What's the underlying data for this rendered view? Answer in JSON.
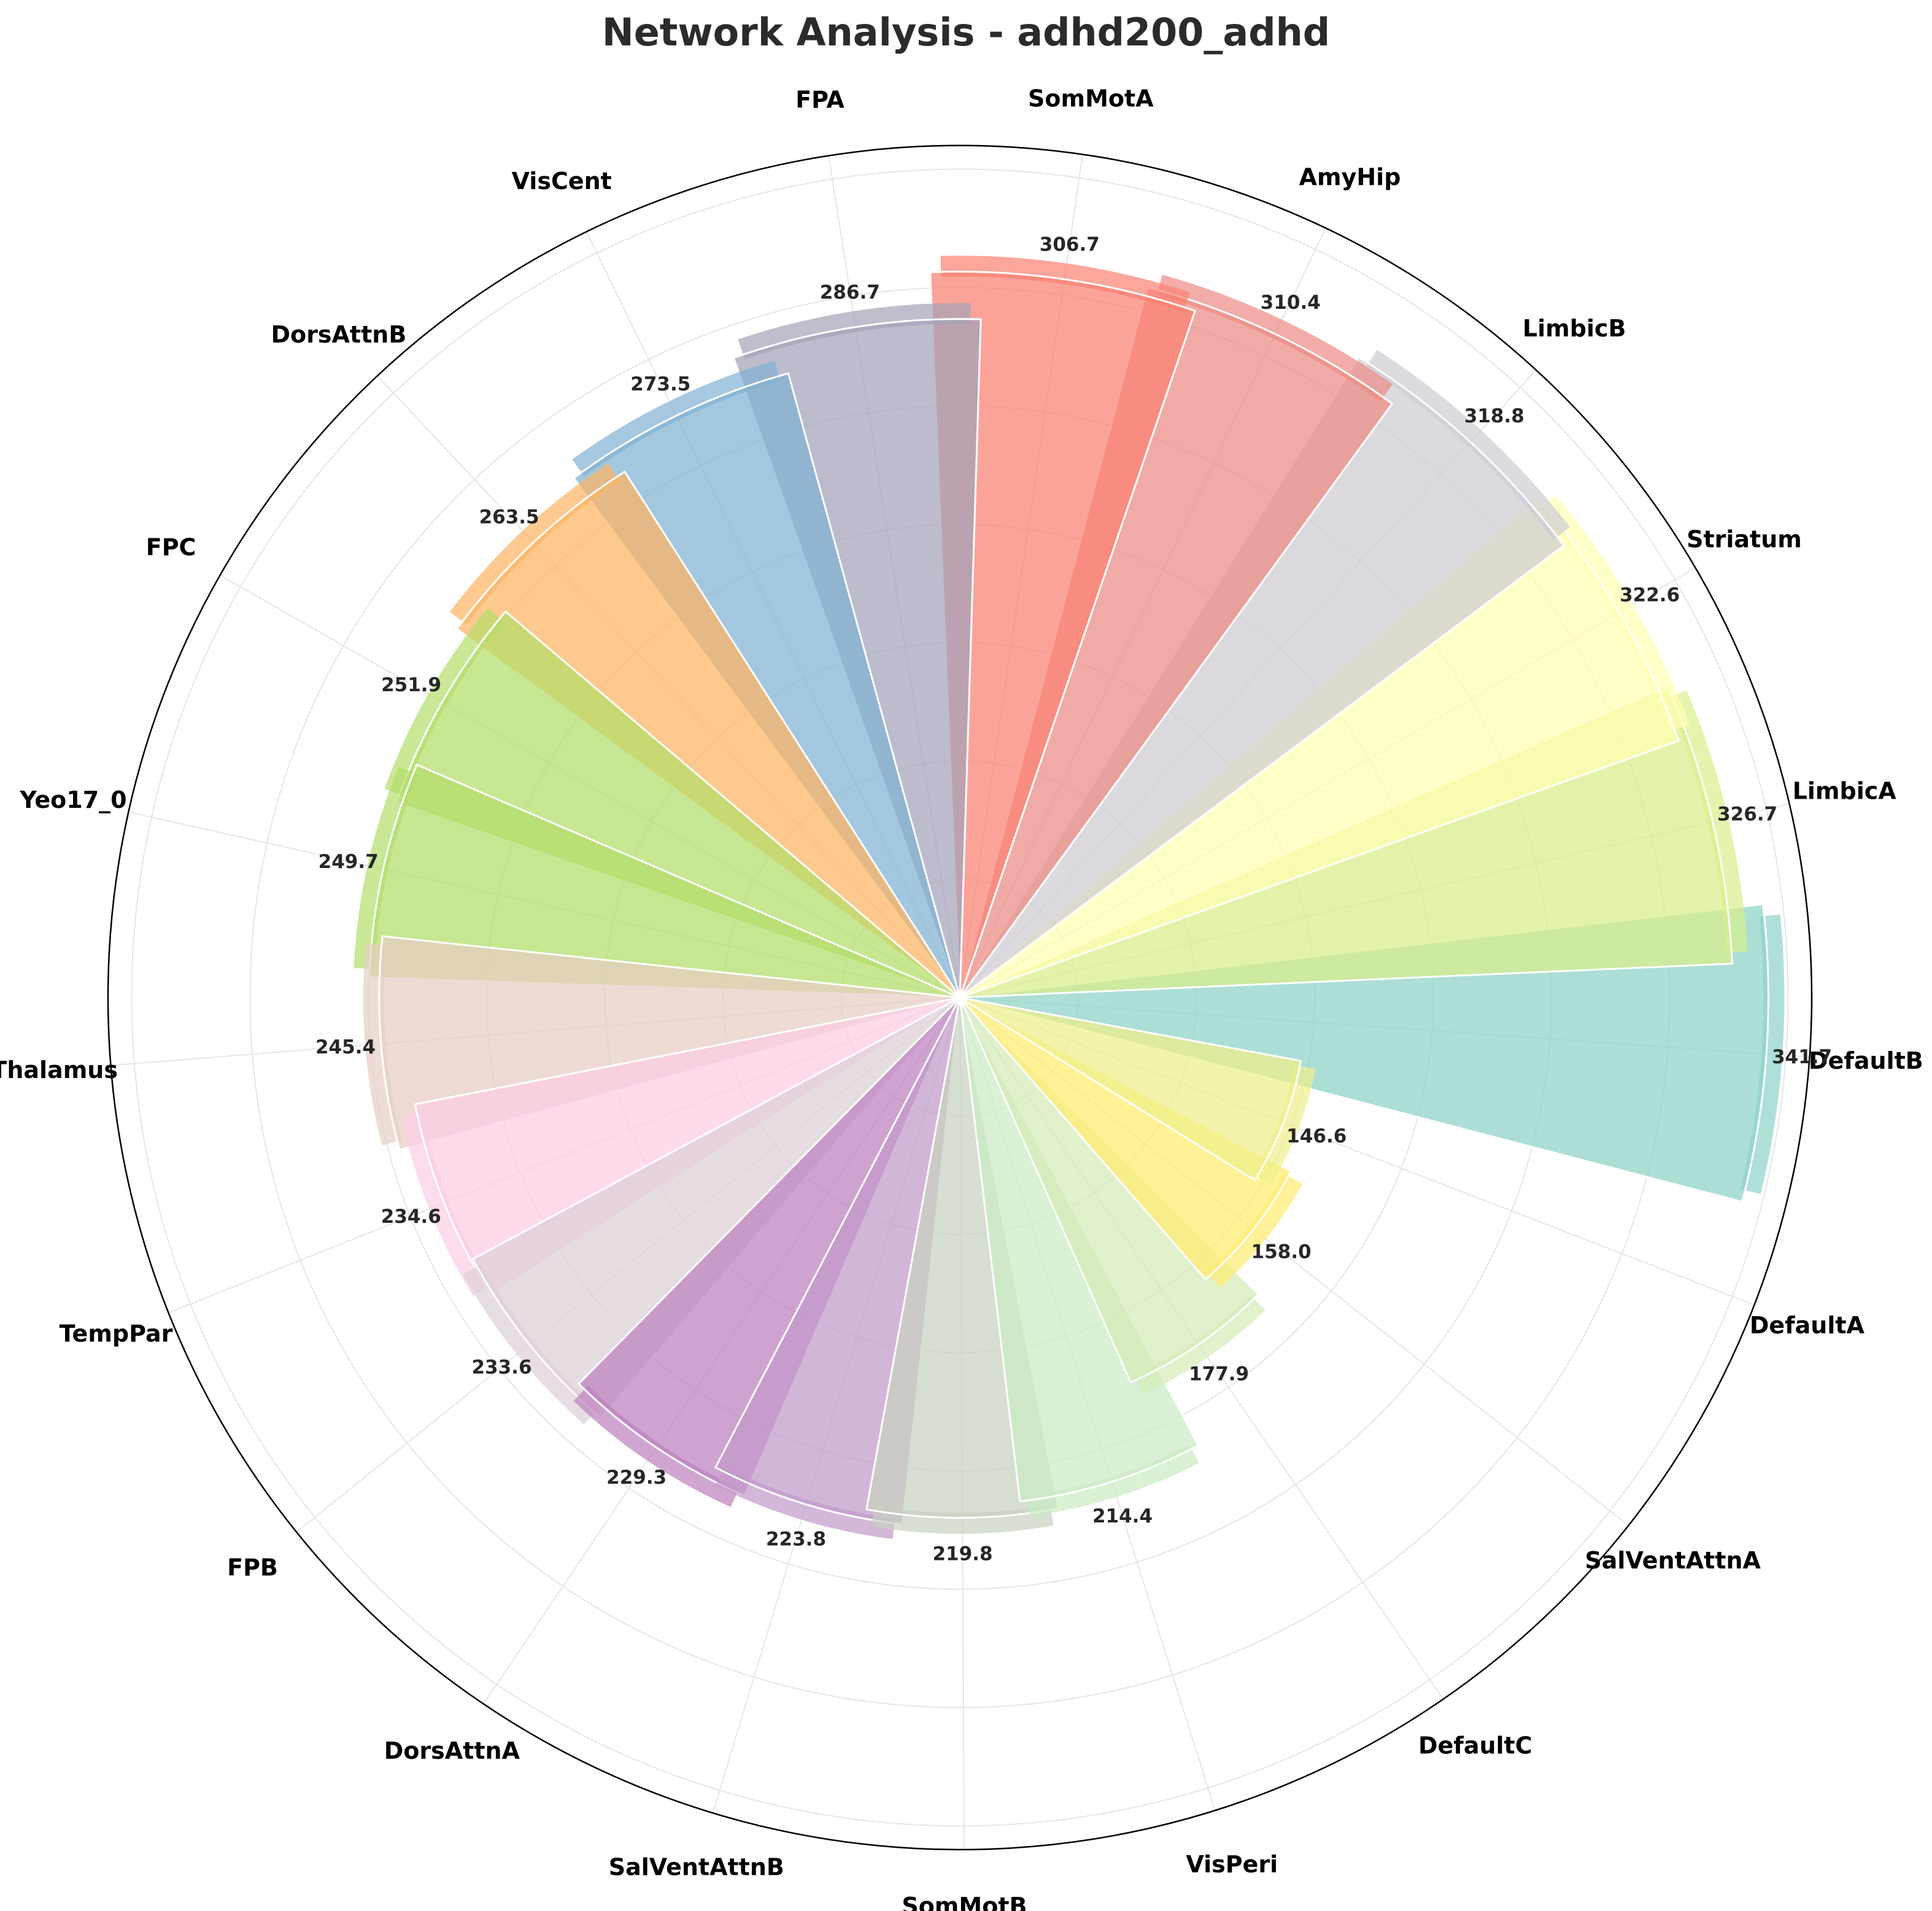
{
  "chart_data": {
    "type": "polar-bar",
    "title": "Network Analysis - adhd200_adhd",
    "xlabel": "",
    "ylabel": "",
    "rlim": [
      0,
      360
    ],
    "grid": true,
    "categories": [
      "DefaultB",
      "LimbicA",
      "Striatum",
      "LimbicB",
      "AmyHip",
      "SomMotA",
      "FPA",
      "VisCent",
      "DorsAttnB",
      "FPC",
      "Yeo17_0",
      "Thalamus",
      "TempPar",
      "FPB",
      "DorsAttnA",
      "SalVentAttnB",
      "SomMotB",
      "VisPeri",
      "DefaultC",
      "SalVentAttnA",
      "DefaultA"
    ],
    "values": [
      341.7,
      326.7,
      322.6,
      318.8,
      310.4,
      306.7,
      286.7,
      273.5,
      263.5,
      251.9,
      249.7,
      245.4,
      234.6,
      233.6,
      229.3,
      223.8,
      219.8,
      214.4,
      177.9,
      158.0,
      146.6
    ],
    "value_labels": [
      "341.7",
      "326.7",
      "322.6",
      "318.8",
      "310.4",
      "306.7",
      "286.7",
      "273.5",
      "263.5",
      "251.9",
      "249.7",
      "245.4",
      "234.6",
      "233.6",
      "229.3",
      "223.8",
      "219.8",
      "214.4",
      "177.9",
      "158.0",
      "146.6"
    ],
    "colors": [
      "#8dd3c7",
      "#d9ef8b",
      "#ffffb3",
      "#d0ccd3",
      "#ec8a83",
      "#fb8072",
      "#a4a2b8",
      "#80b1d3",
      "#fdb462",
      "#b3de69",
      "#b3de69",
      "#e7cfc4",
      "#fccde5",
      "#dcd0d8",
      "#bc80bd",
      "#c19ac9",
      "#c8d1c0",
      "#ccebc5",
      "#d5ecb8",
      "#ffed6f",
      "#eef08a"
    ]
  }
}
